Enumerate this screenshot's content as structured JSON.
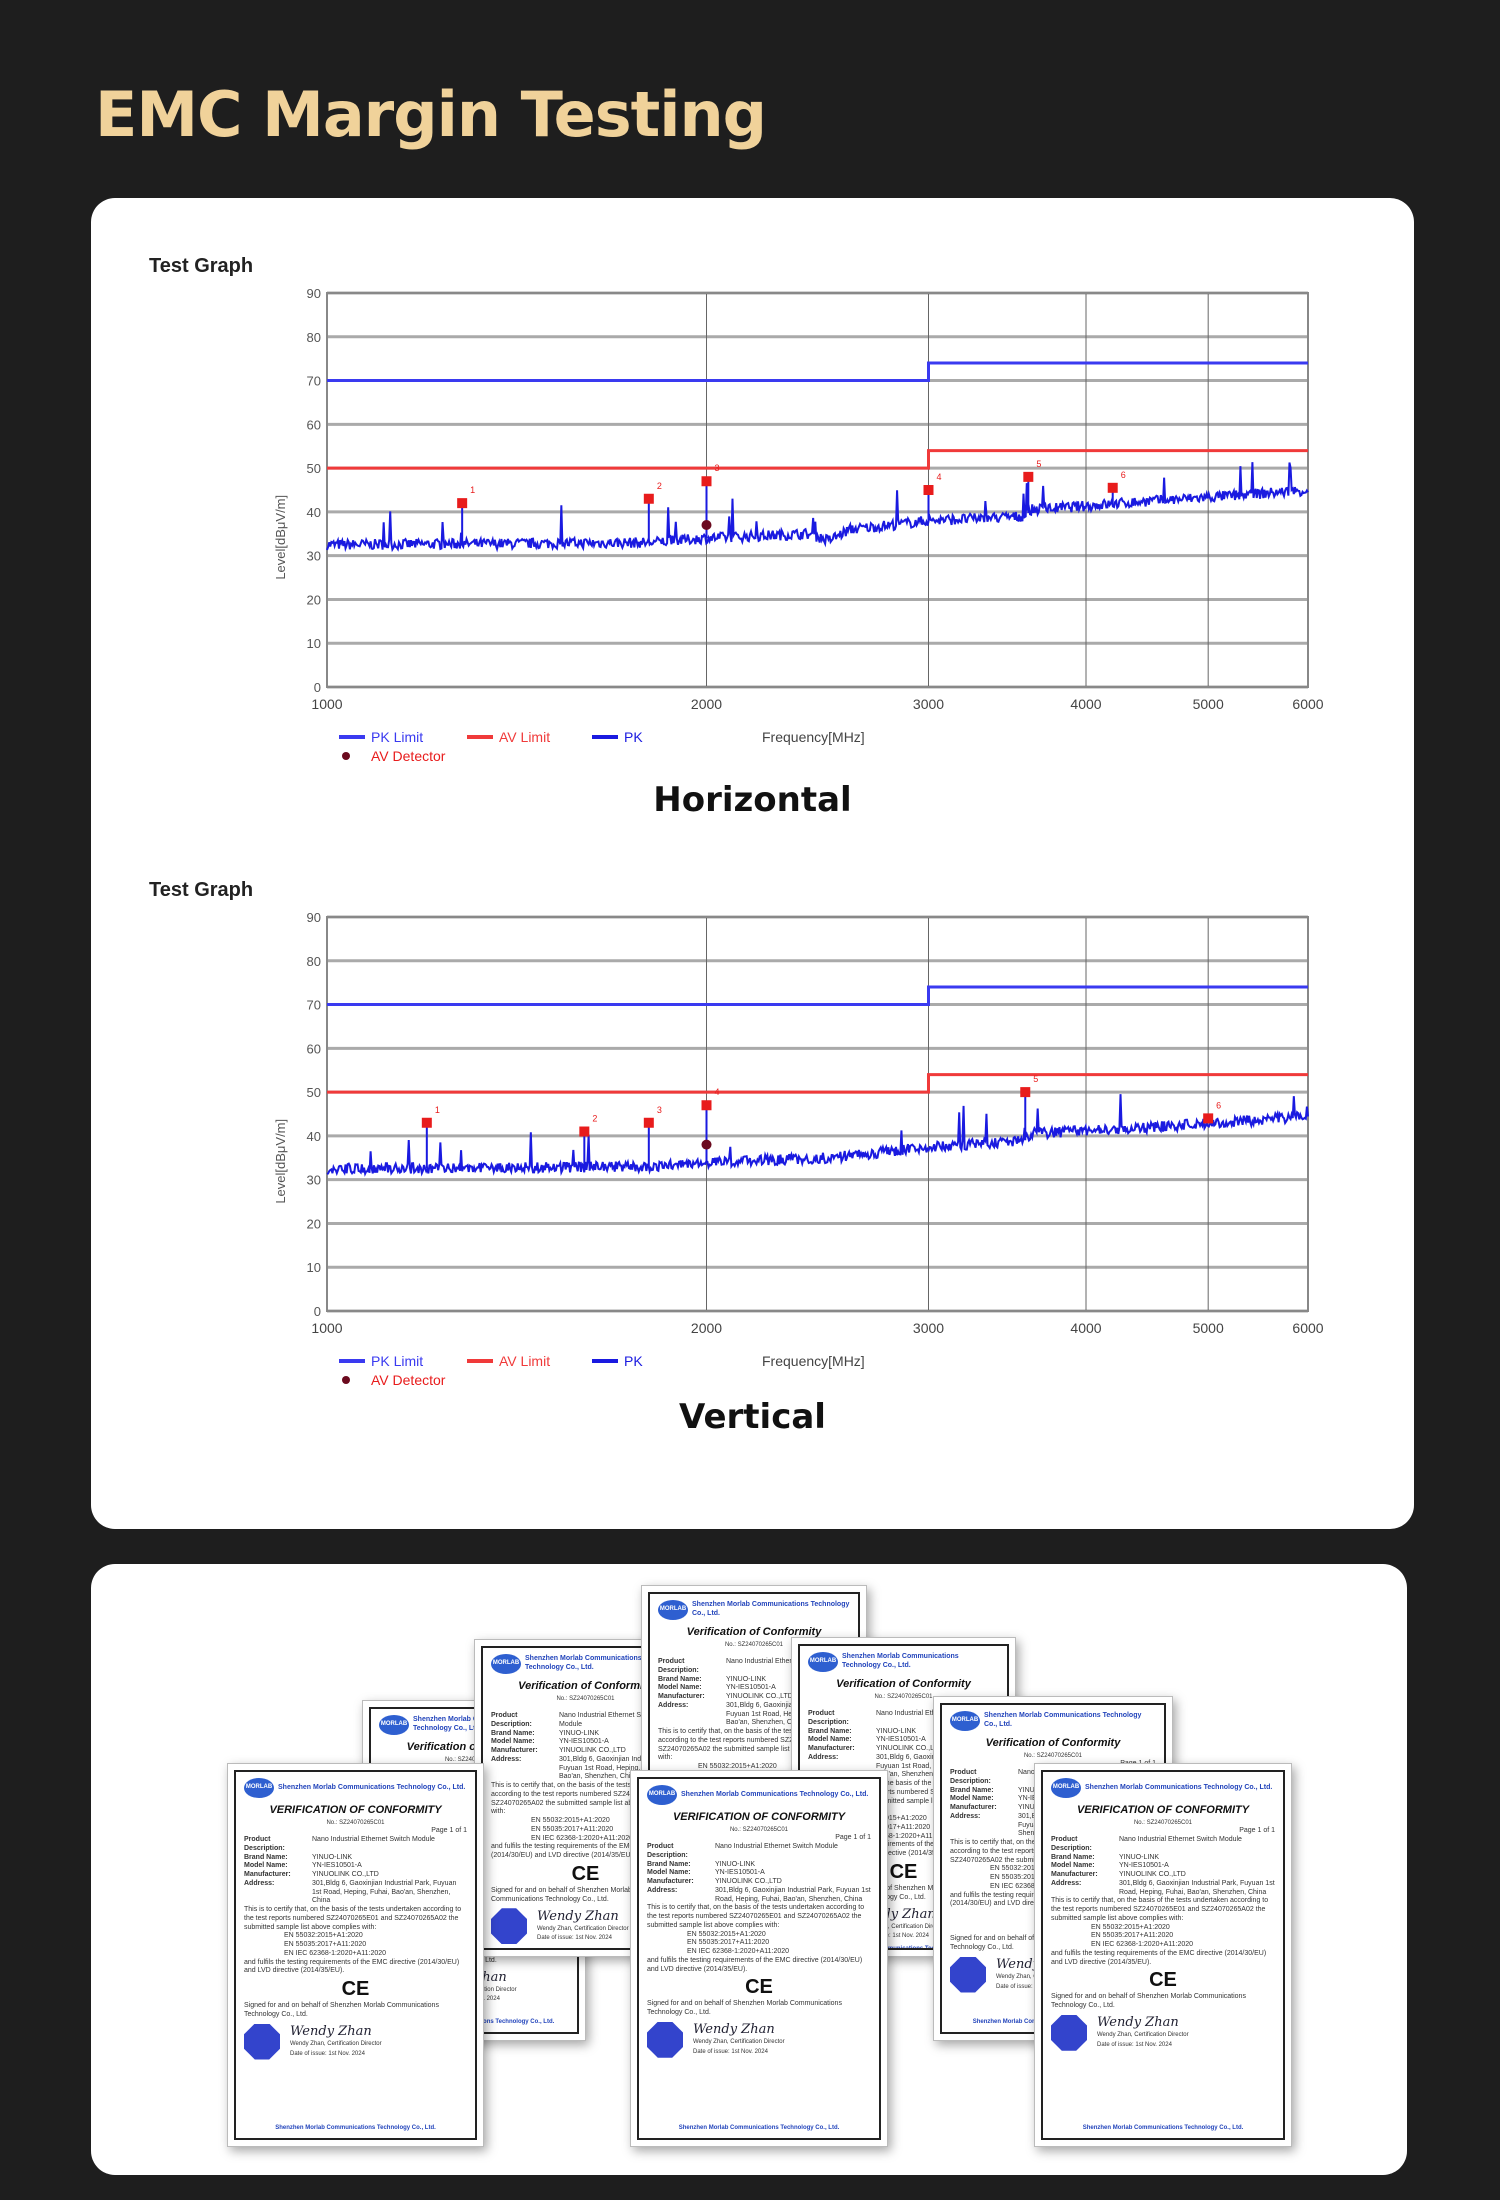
{
  "title": "EMC Margin Testing",
  "charts_caption": [
    "Horizontal",
    "Vertical"
  ],
  "chart_data": [
    {
      "type": "line",
      "title": "Test Graph",
      "xlabel": "Frequency[MHz]",
      "ylabel": "Level[dBμV/m]",
      "xscale": "log",
      "xlim": [
        1000,
        6000
      ],
      "ylim": [
        0,
        90
      ],
      "xticks": [
        1000,
        2000,
        3000,
        4000,
        5000,
        6000
      ],
      "yticks": [
        0,
        10,
        20,
        30,
        40,
        50,
        60,
        70,
        80,
        90
      ],
      "grid": true,
      "legend": [
        "PK Limit",
        "AV Limit",
        "PK",
        "AV Detector"
      ],
      "legend_position": "bottom-left",
      "pk_limit": [
        [
          1000,
          70
        ],
        [
          3000,
          70
        ],
        [
          3000,
          74
        ],
        [
          6000,
          74
        ]
      ],
      "av_limit": [
        [
          1000,
          50
        ],
        [
          3000,
          50
        ],
        [
          3000,
          54
        ],
        [
          6000,
          54
        ]
      ],
      "pk_baseline": [
        [
          1000,
          32.5
        ],
        [
          1800,
          33
        ],
        [
          2000,
          34
        ],
        [
          2400,
          35
        ],
        [
          2500,
          33.5
        ],
        [
          2600,
          36
        ],
        [
          3000,
          38
        ],
        [
          3580,
          39
        ],
        [
          3620,
          40.5
        ],
        [
          4500,
          42.5
        ],
        [
          6000,
          45
        ]
      ],
      "peaks": [
        {
          "label": "1",
          "x": 1280,
          "y": 42
        },
        {
          "label": "2",
          "x": 1800,
          "y": 43
        },
        {
          "label": "3",
          "x": 2000,
          "y": 47
        },
        {
          "label": "4",
          "x": 3000,
          "y": 45
        },
        {
          "label": "5",
          "x": 3600,
          "y": 48
        },
        {
          "label": "6",
          "x": 4200,
          "y": 45.5
        }
      ],
      "av_detector": [
        {
          "x": 2000,
          "y": 37
        }
      ],
      "colors": {
        "pk_limit": "#3a3af0",
        "av_limit": "#f03a3a",
        "pk": "#1a1ae0",
        "marker": "#e81c1c",
        "av": "#6b0a1e"
      }
    },
    {
      "type": "line",
      "title": "Test Graph",
      "xlabel": "Frequency[MHz]",
      "ylabel": "Level[dBμV/m]",
      "xscale": "log",
      "xlim": [
        1000,
        6000
      ],
      "ylim": [
        0,
        90
      ],
      "xticks": [
        1000,
        2000,
        3000,
        4000,
        5000,
        6000
      ],
      "yticks": [
        0,
        10,
        20,
        30,
        40,
        50,
        60,
        70,
        80,
        90
      ],
      "grid": true,
      "legend": [
        "PK Limit",
        "AV Limit",
        "PK",
        "AV Detector"
      ],
      "legend_position": "bottom-left",
      "pk_limit": [
        [
          1000,
          70
        ],
        [
          3000,
          70
        ],
        [
          3000,
          74
        ],
        [
          6000,
          74
        ]
      ],
      "av_limit": [
        [
          1000,
          50
        ],
        [
          3000,
          50
        ],
        [
          3000,
          54
        ],
        [
          6000,
          54
        ]
      ],
      "pk_baseline": [
        [
          1000,
          32.5
        ],
        [
          1800,
          33
        ],
        [
          2000,
          34
        ],
        [
          2500,
          35
        ],
        [
          3000,
          37.5
        ],
        [
          3580,
          39
        ],
        [
          3620,
          40.5
        ],
        [
          4500,
          42
        ],
        [
          6000,
          44.5
        ]
      ],
      "peaks": [
        {
          "label": "1",
          "x": 1200,
          "y": 43
        },
        {
          "label": "2",
          "x": 1600,
          "y": 41
        },
        {
          "label": "3",
          "x": 1800,
          "y": 43
        },
        {
          "label": "4",
          "x": 2000,
          "y": 47
        },
        {
          "label": "5",
          "x": 3580,
          "y": 50
        },
        {
          "label": "6",
          "x": 5000,
          "y": 44
        }
      ],
      "av_detector": [
        {
          "x": 2000,
          "y": 38
        }
      ],
      "colors": {
        "pk_limit": "#3a3af0",
        "av_limit": "#f03a3a",
        "pk": "#1a1ae0",
        "marker": "#e81c1c",
        "av": "#6b0a1e"
      }
    }
  ],
  "certificate": {
    "company": "Shenzhen Morlab Communications Technology Co., Ltd.",
    "logo": "MORLAB",
    "title": "VERIFICATION OF CONFORMITY",
    "alt_title": "Verification of Conformity",
    "number": "No.: SZ24070265C01",
    "page": "Page 1 of 1",
    "fields": [
      [
        "Product Description:",
        "Nano Industrial Ethernet Switch Module"
      ],
      [
        "Brand Name:",
        "YINUO-LINK"
      ],
      [
        "Model Name:",
        "YN-IES10501-A"
      ],
      [
        "Manufacturer:",
        "YINUOLINK CO.,LTD"
      ],
      [
        "Address:",
        "301,Bldg 6, Gaoxinjian Industrial Park, Fuyuan 1st Road, Heping, Fuhai, Bao'an, Shenzhen, China"
      ]
    ],
    "statement": "This is to certify that, on the basis of the tests undertaken according to the test reports numbered SZ24070265E01 and SZ24070265A02 the submitted sample list above complies with:",
    "standards": [
      "EN 55032:2015+A1:2020",
      "EN 55035:2017+A11:2020",
      "EN IEC 62368-1:2020+A11:2020"
    ],
    "directive": "and fulfils the testing requirements of the EMC directive (2014/30/EU) and LVD directive (2014/35/EU).",
    "mark": "CE",
    "signed": "Signed for and on behalf of Shenzhen Morlab Communications Technology Co., Ltd.",
    "signature": "Wendy Zhan",
    "signer": "Wendy Zhan, Certification Director",
    "date": "Date of issue: 1st Nov. 2024"
  }
}
